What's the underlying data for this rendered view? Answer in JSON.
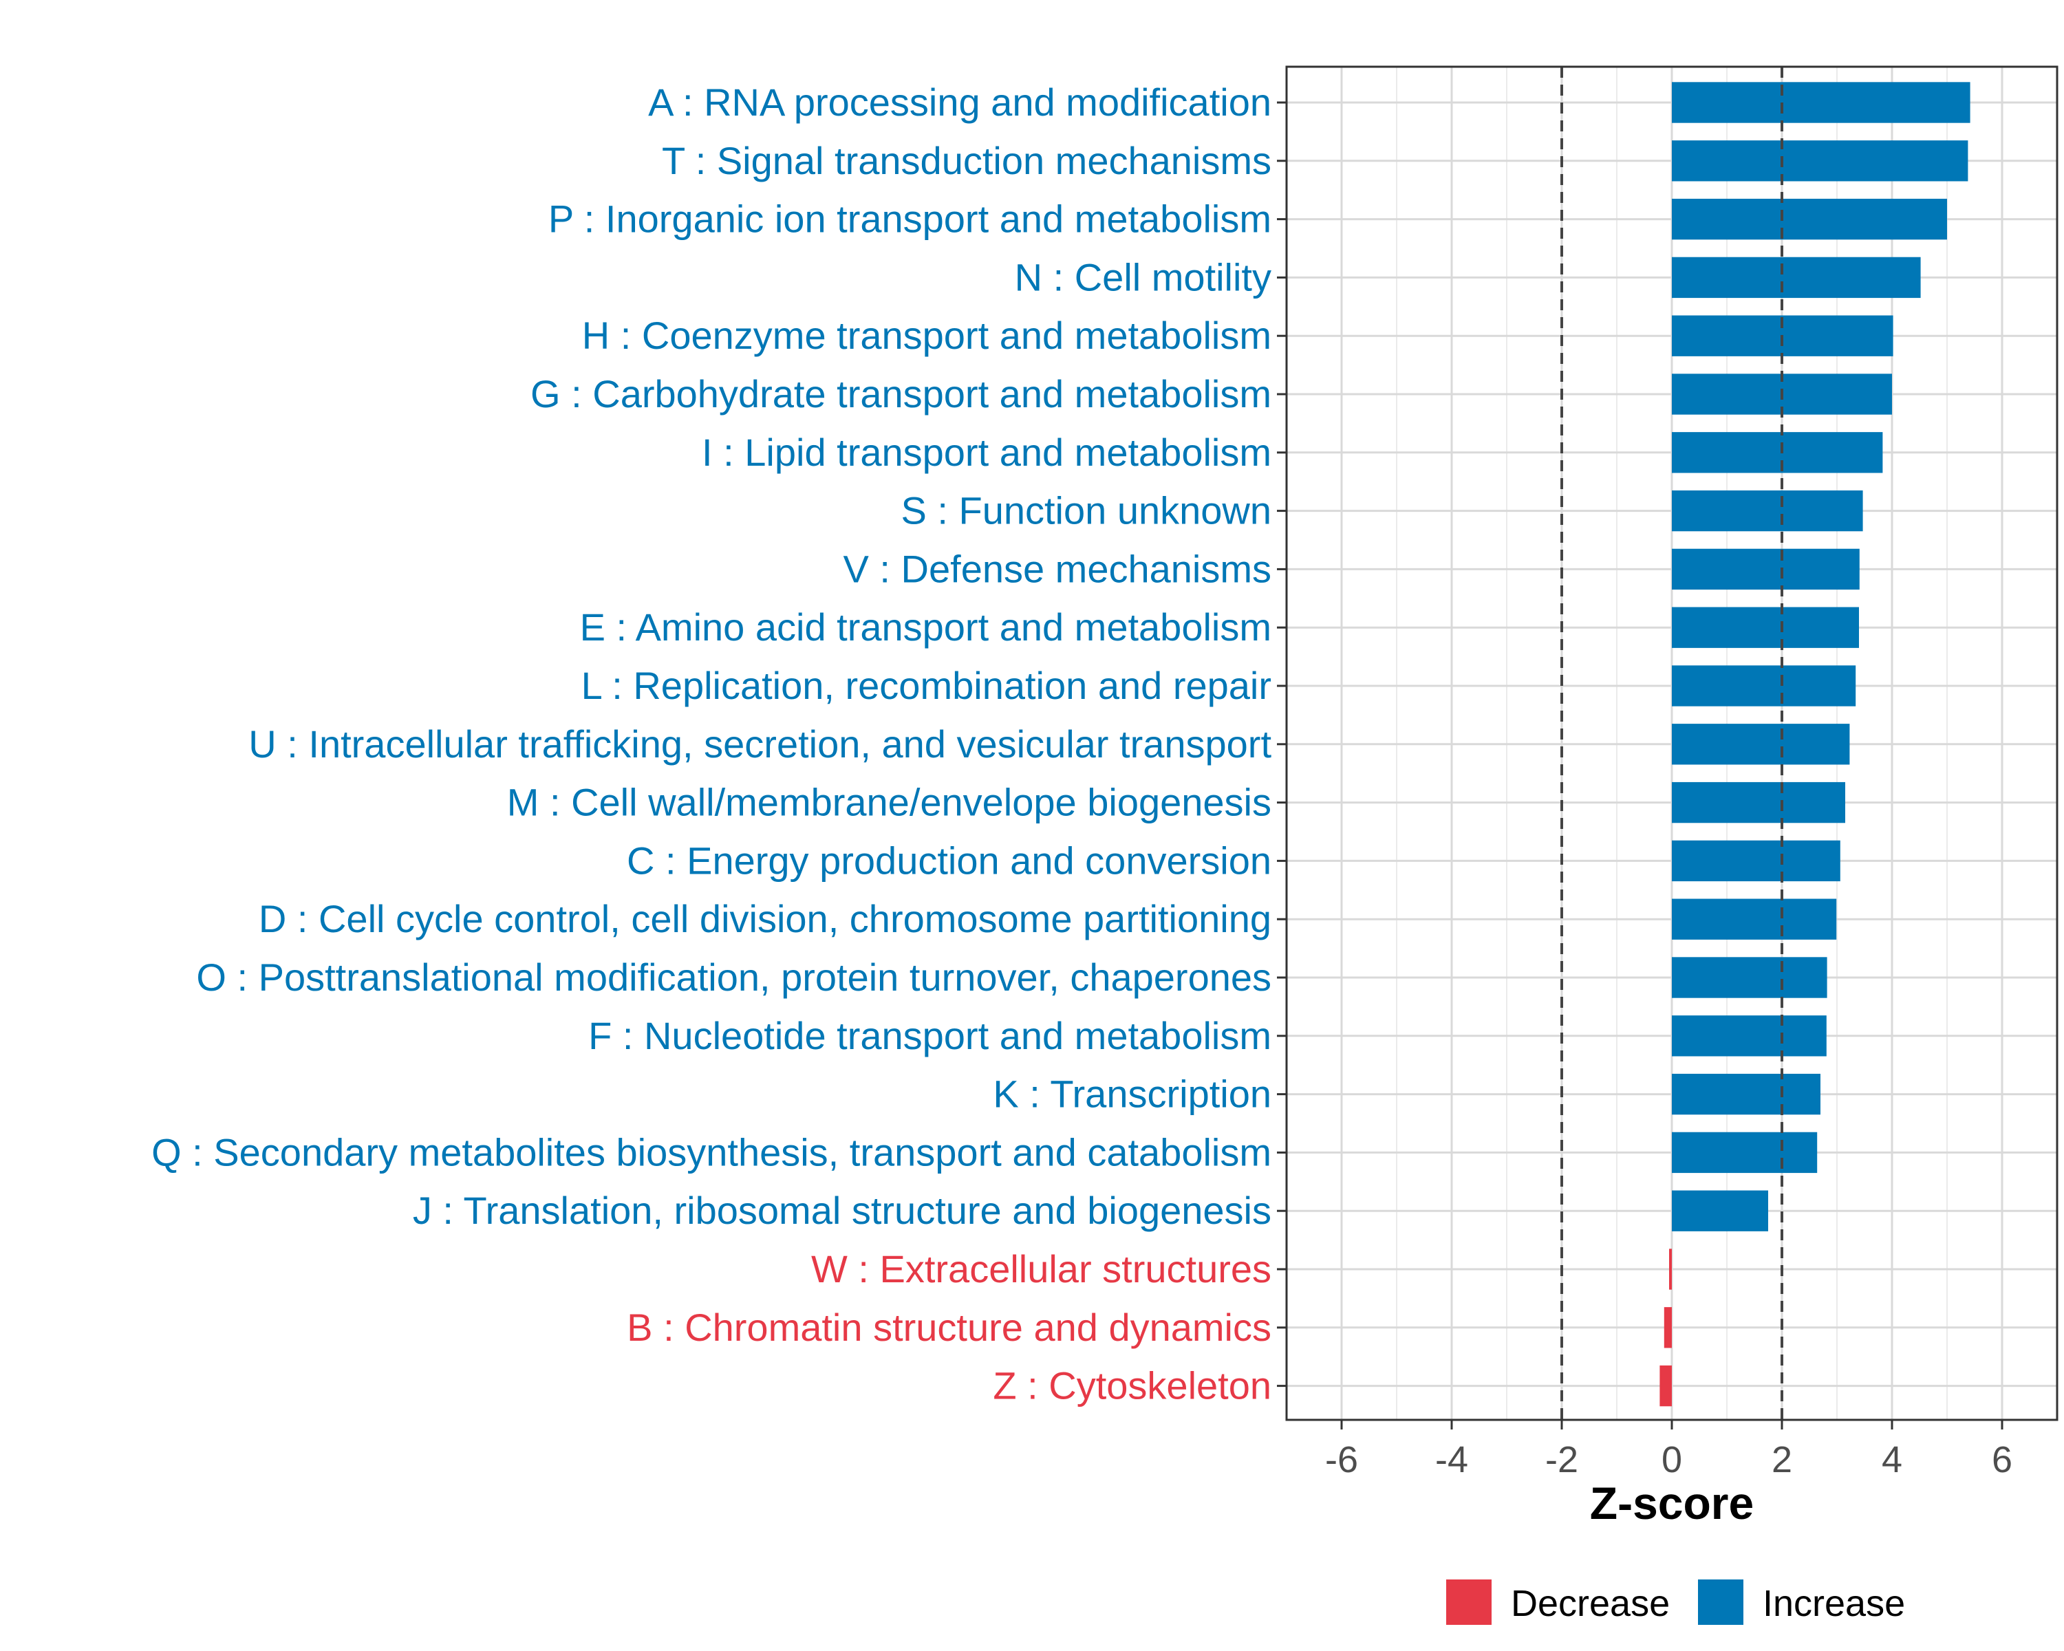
{
  "chart_data": {
    "type": "bar",
    "orientation": "horizontal",
    "title": "",
    "xlabel": "Z-score",
    "ylabel": "",
    "xlim": [
      -7,
      7
    ],
    "xticks": [
      -6,
      -4,
      -2,
      0,
      2,
      4,
      6
    ],
    "xtick_labels": [
      "-6",
      "-4",
      "-2",
      "0",
      "2",
      "4",
      "6"
    ],
    "reference_lines": [
      -2,
      2
    ],
    "grid": true,
    "categories": [
      "A : RNA processing and modification",
      "T : Signal transduction mechanisms",
      "P : Inorganic ion transport and metabolism",
      "N : Cell motility",
      "H : Coenzyme transport and metabolism",
      "G : Carbohydrate transport and metabolism",
      "I : Lipid transport and metabolism",
      "S : Function unknown",
      "V : Defense mechanisms",
      "E : Amino acid transport and metabolism",
      "L : Replication, recombination and repair",
      "U : Intracellular trafficking, secretion, and vesicular transport",
      "M : Cell wall/membrane/envelope biogenesis",
      "C : Energy production and conversion",
      "D : Cell cycle control, cell division, chromosome partitioning",
      "O : Posttranslational modification, protein turnover, chaperones",
      "F : Nucleotide transport and metabolism",
      "K : Transcription",
      "Q : Secondary metabolites biosynthesis, transport and catabolism",
      "J : Translation, ribosomal structure and biogenesis",
      "W : Extracellular structures",
      "B : Chromatin structure and dynamics",
      "Z : Cytoskeleton"
    ],
    "values": [
      5.42,
      5.38,
      5.0,
      4.52,
      4.02,
      4.0,
      3.83,
      3.47,
      3.41,
      3.4,
      3.34,
      3.23,
      3.15,
      3.06,
      2.99,
      2.82,
      2.81,
      2.7,
      2.64,
      1.75,
      -0.05,
      -0.14,
      -0.22
    ],
    "groups": [
      "Increase",
      "Increase",
      "Increase",
      "Increase",
      "Increase",
      "Increase",
      "Increase",
      "Increase",
      "Increase",
      "Increase",
      "Increase",
      "Increase",
      "Increase",
      "Increase",
      "Increase",
      "Increase",
      "Increase",
      "Increase",
      "Increase",
      "Increase",
      "Decrease",
      "Decrease",
      "Decrease"
    ],
    "legend": {
      "placement": "bottom",
      "entries": [
        {
          "label": "Decrease",
          "color": "#e63946"
        },
        {
          "label": "Increase",
          "color": "#0077b6"
        }
      ]
    },
    "colors": {
      "Increase": "#0077b6",
      "Decrease": "#e63946"
    }
  }
}
